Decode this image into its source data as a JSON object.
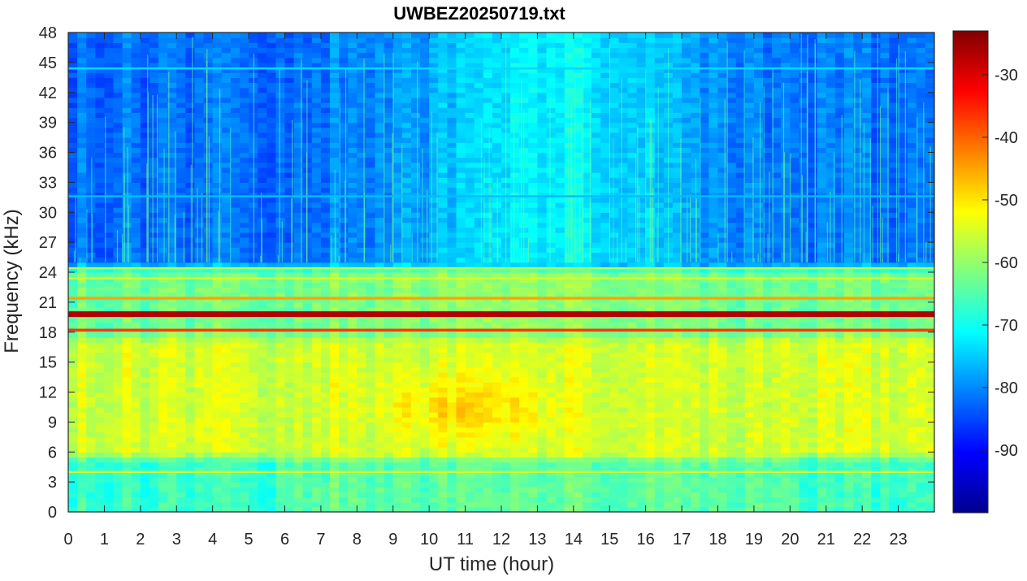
{
  "chart_data": {
    "type": "heatmap",
    "title": "UWBEZ20250719.txt",
    "xlabel": "UT time (hour)",
    "ylabel": "Frequency (kHz)",
    "xlim": [
      0,
      24
    ],
    "ylim": [
      0,
      48
    ],
    "x_ticks": [
      "0",
      "1",
      "2",
      "3",
      "4",
      "5",
      "6",
      "7",
      "8",
      "9",
      "10",
      "11",
      "12",
      "13",
      "14",
      "15",
      "16",
      "17",
      "18",
      "19",
      "20",
      "21",
      "22",
      "23"
    ],
    "y_ticks": [
      "0",
      "3",
      "6",
      "9",
      "12",
      "15",
      "18",
      "21",
      "24",
      "27",
      "30",
      "33",
      "36",
      "39",
      "42",
      "45",
      "48"
    ],
    "colorbar": {
      "colormap": "jet",
      "range": [
        -100,
        -23
      ],
      "ticks": [
        "-90",
        "-80",
        "-70",
        "-60",
        "-50",
        "-40",
        "-30"
      ],
      "tick_values": [
        -90,
        -80,
        -70,
        -60,
        -50,
        -40,
        -30
      ]
    },
    "bands": [
      {
        "freq_khz": 19.8,
        "level_db": -27
      },
      {
        "freq_khz": 18.2,
        "level_db": -37
      },
      {
        "freq_khz": 21.4,
        "level_db": -45
      },
      {
        "freq_khz": 23.4,
        "level_db": -55
      },
      {
        "freq_khz": 24.4,
        "level_db": -58
      },
      {
        "freq_khz": 4.0,
        "level_db": -55
      },
      {
        "freq_khz": 44.4,
        "level_db": -74
      },
      {
        "freq_khz": 31.6,
        "level_db": -76
      }
    ],
    "background_levels": [
      {
        "freq_range_khz": [
          0,
          6
        ],
        "level_db": -66
      },
      {
        "freq_range_khz": [
          6,
          18
        ],
        "level_db": -55
      },
      {
        "freq_range_khz": [
          18,
          25
        ],
        "level_db": -63
      },
      {
        "freq_range_khz": [
          25,
          48
        ],
        "level_db": -82
      }
    ],
    "colors": {
      "axis": "#262626",
      "background": "#ffffff"
    }
  }
}
